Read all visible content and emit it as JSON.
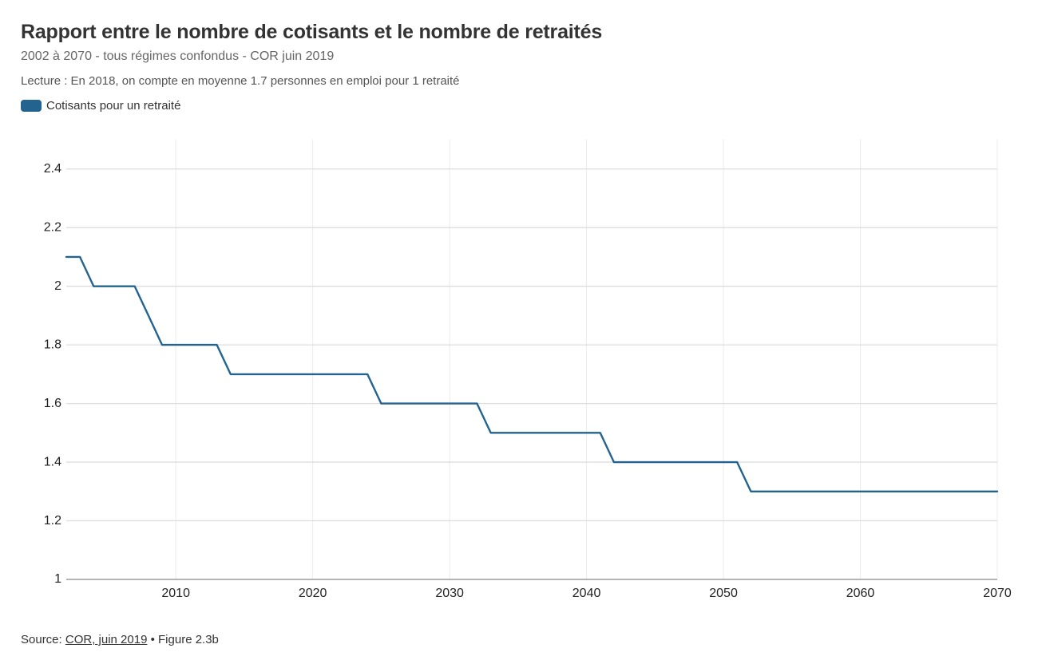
{
  "title": "Rapport entre le nombre de cotisants et le nombre de retraités",
  "subtitle": "2002 à 2070 - tous régimes confondus - COR juin 2019",
  "note": "Lecture : En 2018, on compte en moyenne 1.7 personnes en emploi pour 1 retraité",
  "source": {
    "prefix": "Source: ",
    "link_text": "COR, juin 2019",
    "suffix": " • Figure 2.3b"
  },
  "colors": {
    "series": "#22648f",
    "grid": "#dddddd",
    "axis": "#888888"
  },
  "chart_data": {
    "type": "line",
    "title": "Rapport entre le nombre de cotisants et le nombre de retraités",
    "xlabel": "",
    "ylabel": "",
    "xlim": [
      2002,
      2070
    ],
    "ylim": [
      1,
      2.5
    ],
    "x_ticks": [
      2010,
      2020,
      2030,
      2040,
      2050,
      2060,
      2070
    ],
    "y_ticks": [
      1,
      1.2,
      1.4,
      1.6,
      1.8,
      2,
      2.2,
      2.4
    ],
    "y_tick_labels": [
      "1",
      "1.2",
      "1.4",
      "1.6",
      "1.8",
      "2",
      "2.2",
      "2.4"
    ],
    "grid": true,
    "legend_placement": "top-left",
    "series": [
      {
        "name": "Cotisants pour un retraité",
        "x": [
          2002,
          2003,
          2004,
          2005,
          2006,
          2007,
          2008,
          2009,
          2010,
          2011,
          2012,
          2013,
          2014,
          2015,
          2016,
          2017,
          2018,
          2019,
          2020,
          2021,
          2022,
          2023,
          2024,
          2025,
          2026,
          2027,
          2028,
          2029,
          2030,
          2031,
          2032,
          2033,
          2034,
          2035,
          2036,
          2037,
          2038,
          2039,
          2040,
          2041,
          2042,
          2043,
          2044,
          2045,
          2046,
          2047,
          2048,
          2049,
          2050,
          2051,
          2052,
          2053,
          2054,
          2055,
          2056,
          2057,
          2058,
          2059,
          2060,
          2061,
          2062,
          2063,
          2064,
          2065,
          2066,
          2067,
          2068,
          2069,
          2070
        ],
        "values": [
          2.1,
          2.1,
          2.0,
          2.0,
          2.0,
          2.0,
          1.9,
          1.8,
          1.8,
          1.8,
          1.8,
          1.8,
          1.7,
          1.7,
          1.7,
          1.7,
          1.7,
          1.7,
          1.7,
          1.7,
          1.7,
          1.7,
          1.7,
          1.6,
          1.6,
          1.6,
          1.6,
          1.6,
          1.6,
          1.6,
          1.6,
          1.5,
          1.5,
          1.5,
          1.5,
          1.5,
          1.5,
          1.5,
          1.5,
          1.5,
          1.4,
          1.4,
          1.4,
          1.4,
          1.4,
          1.4,
          1.4,
          1.4,
          1.4,
          1.4,
          1.3,
          1.3,
          1.3,
          1.3,
          1.3,
          1.3,
          1.3,
          1.3,
          1.3,
          1.3,
          1.3,
          1.3,
          1.3,
          1.3,
          1.3,
          1.3,
          1.3,
          1.3,
          1.3
        ]
      }
    ]
  }
}
